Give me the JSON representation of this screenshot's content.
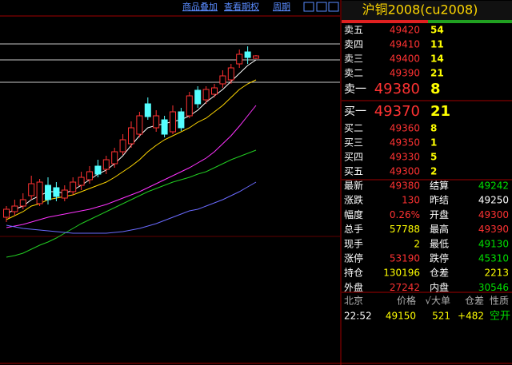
{
  "toolbar": {
    "items": [
      "商品叠加",
      "查看期权",
      "周期"
    ]
  },
  "chart_data": {
    "type": "candlestick",
    "ylim": [
      45680,
      50080
    ],
    "up_color": "#ff3232",
    "down_color": "#54ffff",
    "open": [
      47360,
      47430,
      47500,
      47630,
      47530,
      47760,
      47730,
      47600,
      47680,
      47760,
      47830,
      48000,
      47960,
      48030,
      48180,
      48280,
      48400,
      48780,
      48480,
      48580,
      48430,
      48680,
      48630,
      48950,
      48830,
      48900,
      49030,
      49080,
      49280,
      49430,
      49350
    ],
    "close": [
      47460,
      47500,
      47580,
      47780,
      47800,
      47580,
      47620,
      47700,
      47800,
      47860,
      47930,
      47900,
      48080,
      48180,
      48330,
      48480,
      48630,
      48620,
      48630,
      48400,
      48680,
      48480,
      48880,
      48780,
      48960,
      48980,
      49130,
      49230,
      49400,
      49360,
      49380
    ],
    "high": [
      47500,
      47580,
      47660,
      47880,
      47840,
      47860,
      47800,
      47760,
      47860,
      47930,
      48000,
      48080,
      48130,
      48230,
      48400,
      48560,
      48680,
      48860,
      48700,
      48630,
      48760,
      48730,
      48930,
      49000,
      49000,
      49030,
      49200,
      49280,
      49460,
      49500,
      49390
    ],
    "low": [
      47300,
      47380,
      47460,
      47580,
      47500,
      47520,
      47560,
      47560,
      47640,
      47700,
      47780,
      47860,
      47900,
      47980,
      48140,
      48230,
      48360,
      48580,
      48430,
      48360,
      48400,
      48440,
      48600,
      48730,
      48780,
      48860,
      48980,
      49030,
      49230,
      49280,
      49340
    ],
    "series": [
      {
        "color": "#ffffff",
        "values": [
          47400,
          47460,
          47500,
          47580,
          47630,
          47680,
          47680,
          47660,
          47700,
          47760,
          47830,
          47900,
          47950,
          48030,
          48130,
          48260,
          48380,
          48480,
          48510,
          48530,
          48560,
          48580,
          48630,
          48700,
          48800,
          48880,
          48960,
          49060,
          49160,
          49260,
          49330
        ]
      },
      {
        "color": "#ffd700",
        "values": [
          47330,
          47380,
          47430,
          47500,
          47530,
          47580,
          47600,
          47620,
          47640,
          47680,
          47720,
          47760,
          47800,
          47860,
          47930,
          48000,
          48080,
          48180,
          48260,
          48330,
          48380,
          48430,
          48480,
          48550,
          48600,
          48680,
          48760,
          48860,
          48960,
          49030,
          49080
        ]
      },
      {
        "color": "#ff33ff",
        "values": [
          47230,
          47250,
          47270,
          47300,
          47330,
          47360,
          47380,
          47400,
          47420,
          47440,
          47460,
          47490,
          47520,
          47560,
          47600,
          47640,
          47680,
          47730,
          47780,
          47830,
          47880,
          47930,
          47980,
          48040,
          48100,
          48180,
          48280,
          48380,
          48500,
          48630,
          48760
        ]
      },
      {
        "color": "#22cc22",
        "values": [
          46860,
          46880,
          46910,
          46960,
          47010,
          47050,
          47100,
          47160,
          47220,
          47280,
          47330,
          47380,
          47430,
          47480,
          47530,
          47580,
          47630,
          47680,
          47720,
          47760,
          47800,
          47830,
          47860,
          47900,
          47930,
          47980,
          48030,
          48080,
          48120,
          48160,
          48200
        ]
      },
      {
        "color": "#6a6aff",
        "values": [
          47260,
          47240,
          47220,
          47210,
          47200,
          47190,
          47180,
          47170,
          47160,
          47160,
          47160,
          47160,
          47160,
          47170,
          47180,
          47200,
          47220,
          47250,
          47280,
          47320,
          47360,
          47400,
          47440,
          47460,
          47500,
          47540,
          47580,
          47630,
          47680,
          47740,
          47800
        ]
      }
    ]
  },
  "quote": {
    "title": "沪铜2008(cu2008)",
    "sell": [
      {
        "label": "卖五",
        "price": 49420,
        "volume": 54
      },
      {
        "label": "卖四",
        "price": 49410,
        "volume": 11
      },
      {
        "label": "卖三",
        "price": 49400,
        "volume": 14
      },
      {
        "label": "卖二",
        "price": 49390,
        "volume": 21
      },
      {
        "label": "卖一",
        "price": 49380,
        "volume": 8
      }
    ],
    "buy": [
      {
        "label": "买一",
        "price": 49370,
        "volume": 21
      },
      {
        "label": "买二",
        "price": 49360,
        "volume": 8
      },
      {
        "label": "买三",
        "price": 49350,
        "volume": 1
      },
      {
        "label": "买四",
        "price": 49330,
        "volume": 5
      },
      {
        "label": "买五",
        "price": 49300,
        "volume": 2
      }
    ],
    "stats": [
      [
        "最新",
        49380,
        "结算",
        49242
      ],
      [
        "涨跌",
        130,
        "昨结",
        49250
      ],
      [
        "幅度",
        "0.26%",
        "开盘",
        49300
      ],
      [
        "总手",
        57788,
        "最高",
        49390
      ],
      [
        "现手",
        2,
        "最低",
        49130
      ],
      [
        "涨停",
        53190,
        "跌停",
        45310
      ],
      [
        "持仓",
        130196,
        "仓差",
        2213
      ],
      [
        "外盘",
        27242,
        "内盘",
        30546
      ]
    ],
    "ticks": {
      "header": [
        "北京",
        "价格",
        "√大单",
        "仓差",
        "性质"
      ],
      "rows": [
        [
          "22:52",
          49150,
          521,
          "+482",
          "空开"
        ]
      ]
    }
  }
}
